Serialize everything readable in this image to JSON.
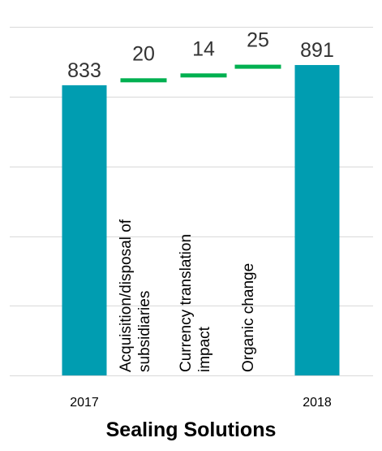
{
  "chart_data": {
    "type": "bar",
    "subtype": "waterfall",
    "title": "Sealing Solutions",
    "categories": [
      "2017",
      "Acquisition/disposal of subsidiaries",
      "Currency translation impact",
      "Organic change",
      "2018"
    ],
    "category_label_lines": [
      [
        "2017"
      ],
      [
        "Acquisition/disposal of",
        "subsidiaries"
      ],
      [
        "Currency translation",
        "impact"
      ],
      [
        "Organic change"
      ],
      [
        "2018"
      ]
    ],
    "values": [
      833,
      20,
      14,
      25,
      891
    ],
    "value_labels": [
      "833",
      "20",
      "14",
      "25",
      "891"
    ],
    "bar_kinds": [
      "total",
      "delta",
      "delta",
      "delta",
      "total"
    ],
    "ylim": [
      0,
      1000
    ],
    "grid": true,
    "legend": "none",
    "colors": {
      "total": "#009DB1",
      "delta": "#00B050",
      "grid": "#D9D9D9",
      "text": "#333333"
    }
  }
}
